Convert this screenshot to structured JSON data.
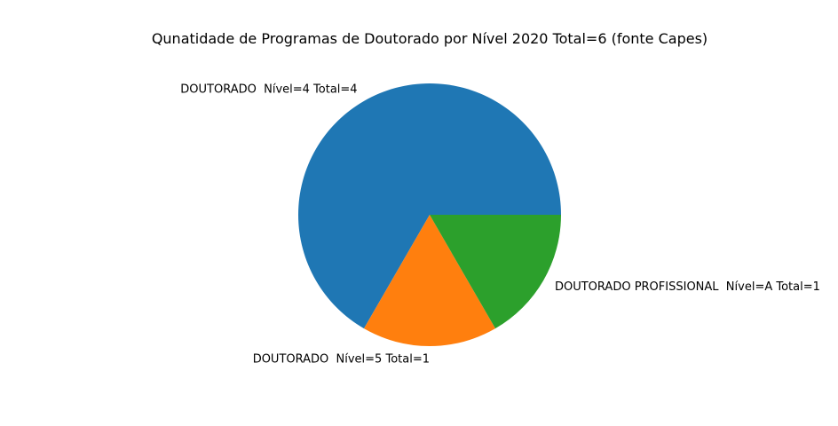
{
  "chart_data": {
    "type": "pie",
    "title": "Qunatidade de Programas de Doutorado  por Nível  2020 Total=6 (fonte Capes)",
    "start_angle_deg": 0,
    "direction": "counterclockwise",
    "slices": [
      {
        "label": "DOUTORADO  Nível=4 Total=4",
        "value": 4,
        "color": "#1f77b4"
      },
      {
        "label": "DOUTORADO  Nível=5 Total=1",
        "value": 1,
        "color": "#ff7f0e"
      },
      {
        "label": "DOUTORADO PROFISSIONAL  Nível=A Total=1",
        "value": 1,
        "color": "#2ca02c"
      }
    ]
  }
}
